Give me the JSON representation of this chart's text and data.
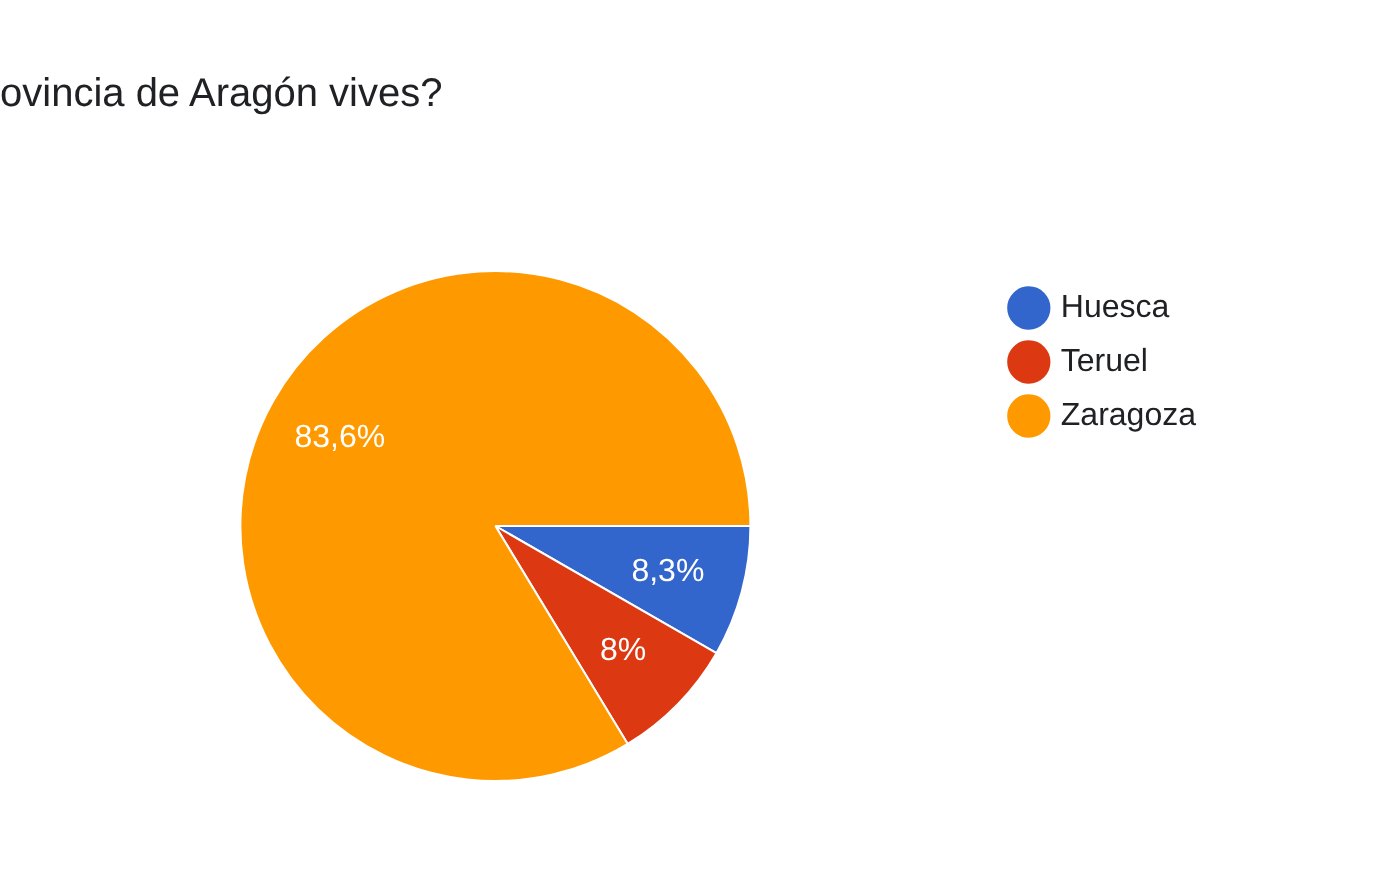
{
  "chart_data": {
    "type": "pie",
    "title": "ovincia de Aragón vives?",
    "categories": [
      "Huesca",
      "Teruel",
      "Zaragoza"
    ],
    "values": [
      8.3,
      8,
      83.6
    ],
    "value_labels": [
      "8,3%",
      "8%",
      "83,6%"
    ],
    "colors": [
      "#3366cc",
      "#dc3912",
      "#ff9900"
    ],
    "legend": "right"
  }
}
